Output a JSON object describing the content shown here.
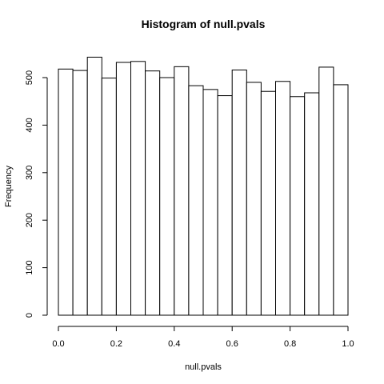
{
  "chart_data": {
    "type": "bar",
    "title": "Histogram of null.pvals",
    "xlabel": "null.pvals",
    "ylabel": "Frequency",
    "bins": [
      {
        "x0": 0.0,
        "x1": 0.05,
        "value": 518
      },
      {
        "x0": 0.05,
        "x1": 0.1,
        "value": 515
      },
      {
        "x0": 0.1,
        "x1": 0.15,
        "value": 543
      },
      {
        "x0": 0.15,
        "x1": 0.2,
        "value": 499
      },
      {
        "x0": 0.2,
        "x1": 0.25,
        "value": 532
      },
      {
        "x0": 0.25,
        "x1": 0.3,
        "value": 534
      },
      {
        "x0": 0.3,
        "x1": 0.35,
        "value": 514
      },
      {
        "x0": 0.35,
        "x1": 0.4,
        "value": 500
      },
      {
        "x0": 0.4,
        "x1": 0.45,
        "value": 523
      },
      {
        "x0": 0.45,
        "x1": 0.5,
        "value": 483
      },
      {
        "x0": 0.5,
        "x1": 0.55,
        "value": 475
      },
      {
        "x0": 0.55,
        "x1": 0.6,
        "value": 462
      },
      {
        "x0": 0.6,
        "x1": 0.65,
        "value": 516
      },
      {
        "x0": 0.65,
        "x1": 0.7,
        "value": 490
      },
      {
        "x0": 0.7,
        "x1": 0.75,
        "value": 471
      },
      {
        "x0": 0.75,
        "x1": 0.8,
        "value": 492
      },
      {
        "x0": 0.8,
        "x1": 0.85,
        "value": 460
      },
      {
        "x0": 0.85,
        "x1": 0.9,
        "value": 468
      },
      {
        "x0": 0.9,
        "x1": 0.95,
        "value": 522
      },
      {
        "x0": 0.95,
        "x1": 1.0,
        "value": 485
      }
    ],
    "xlim": [
      0,
      1
    ],
    "ylim": [
      0,
      550
    ],
    "x_ticks": [
      {
        "value": 0.0,
        "label": "0.0"
      },
      {
        "value": 0.2,
        "label": "0.2"
      },
      {
        "value": 0.4,
        "label": "0.4"
      },
      {
        "value": 0.6,
        "label": "0.6"
      },
      {
        "value": 0.8,
        "label": "0.8"
      },
      {
        "value": 1.0,
        "label": "1.0"
      }
    ],
    "y_ticks": [
      {
        "value": 0,
        "label": "0"
      },
      {
        "value": 100,
        "label": "100"
      },
      {
        "value": 200,
        "label": "200"
      },
      {
        "value": 300,
        "label": "300"
      },
      {
        "value": 400,
        "label": "400"
      },
      {
        "value": 500,
        "label": "500"
      }
    ],
    "bar_fill": "#ffffff",
    "bar_stroke": "#000000",
    "grid": false,
    "legend": "none"
  }
}
